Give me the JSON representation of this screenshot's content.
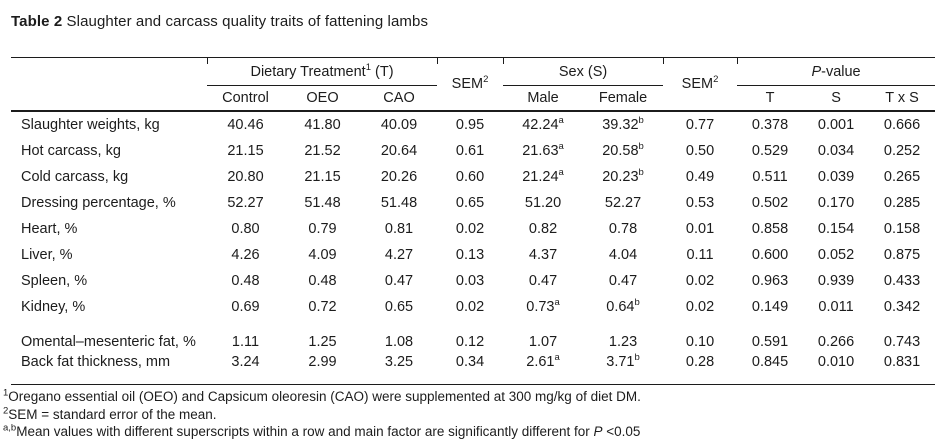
{
  "title": {
    "bold": "Table 2",
    "rest": " Slaughter and carcass quality traits of fattening lambs"
  },
  "table": {
    "groups": {
      "dietary": {
        "pre": "Dietary Treatment",
        "sup": "1",
        "post": " (T)"
      },
      "sem1": {
        "pre": "SEM",
        "sup": "2"
      },
      "sex": {
        "label": "Sex (S)"
      },
      "sem2": {
        "pre": "SEM",
        "sup": "2"
      },
      "pvalue": {
        "italic": "P",
        "post": "-value"
      }
    },
    "columns": [
      "Control",
      "OEO",
      "CAO",
      "Male",
      "Female",
      "T",
      "S",
      "T x S"
    ],
    "rows": [
      {
        "label": "Slaughter weights, kg",
        "values": [
          "40.46",
          "41.80",
          "40.09",
          "0.95",
          "42.24^a",
          "39.32^b",
          "0.77",
          "0.378",
          "0.001",
          "0.666"
        ]
      },
      {
        "label": "Hot carcass, kg",
        "values": [
          "21.15",
          "21.52",
          "20.64",
          "0.61",
          "21.63^a",
          "20.58^b",
          "0.50",
          "0.529",
          "0.034",
          "0.252"
        ]
      },
      {
        "label": "Cold carcass, kg",
        "values": [
          "20.80",
          "21.15",
          "20.26",
          "0.60",
          "21.24^a",
          "20.23^b",
          "0.49",
          "0.511",
          "0.039",
          "0.265"
        ]
      },
      {
        "label": "Dressing percentage, %",
        "values": [
          "52.27",
          "51.48",
          "51.48",
          "0.65",
          "51.20",
          "52.27",
          "0.53",
          "0.502",
          "0.170",
          "0.285"
        ]
      },
      {
        "label": "Heart, %",
        "values": [
          "0.80",
          "0.79",
          "0.81",
          "0.02",
          "0.82",
          "0.78",
          "0.01",
          "0.858",
          "0.154",
          "0.158"
        ]
      },
      {
        "label": "Liver, %",
        "values": [
          "4.26",
          "4.09",
          "4.27",
          "0.13",
          "4.37",
          "4.04",
          "0.11",
          "0.600",
          "0.052",
          "0.875"
        ]
      },
      {
        "label": "Spleen, %",
        "values": [
          "0.48",
          "0.48",
          "0.47",
          "0.03",
          "0.47",
          "0.47",
          "0.02",
          "0.963",
          "0.939",
          "0.433"
        ]
      },
      {
        "label": "Kidney, %",
        "values": [
          "0.69",
          "0.72",
          "0.65",
          "0.02",
          "0.73^a",
          "0.64^b",
          "0.02",
          "0.149",
          "0.011",
          "0.342"
        ]
      },
      {
        "label": "Omental–mesenteric fat, %",
        "values": [
          "1.11",
          "1.25",
          "1.08",
          "0.12",
          "1.07",
          "1.23",
          "0.10",
          "0.591",
          "0.266",
          "0.743"
        ]
      },
      {
        "label": "Back fat thickness, mm",
        "values": [
          "3.24",
          "2.99",
          "3.25",
          "0.34",
          "2.61^a",
          "3.71^b",
          "0.28",
          "0.845",
          "0.010",
          "0.831"
        ]
      }
    ]
  },
  "footnotes": [
    [
      {
        "t": "1",
        "s": "sup"
      },
      {
        "t": "Oregano essential oil (OEO) and Capsicum oleoresin (CAO) were supplemented at 300 mg/kg of diet DM."
      }
    ],
    [
      {
        "t": "2",
        "s": "sup"
      },
      {
        "t": "SEM = standard error of the mean."
      }
    ],
    [
      {
        "t": "a,b",
        "s": "sup"
      },
      {
        "t": "Mean values with different superscripts within a row and main factor are significantly different for "
      },
      {
        "t": "P",
        "s": "i"
      },
      {
        "t": " <0.05"
      }
    ]
  ]
}
